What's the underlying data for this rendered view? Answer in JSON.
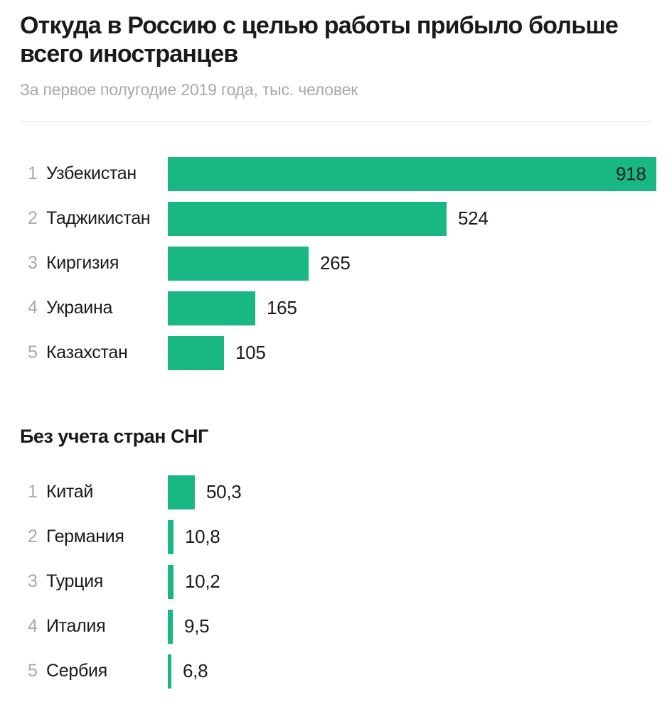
{
  "header": {
    "title": "Откуда в Россию с целью работы прибыло больше всего иностранцев",
    "subtitle": "За первое полугодие 2019 года, тыс. человек"
  },
  "colors": {
    "accent": "#19b784",
    "text": "#1a1a1a",
    "muted": "#a9a9a9",
    "divider": "#e4e4e4",
    "background": "#ffffff"
  },
  "chart_data": [
    {
      "type": "bar",
      "title": "",
      "orientation": "horizontal",
      "ranks": [
        "1",
        "2",
        "3",
        "4",
        "5"
      ],
      "categories": [
        "Узбекистан",
        "Таджикистан",
        "Киргизия",
        "Украина",
        "Казахстан"
      ],
      "values": [
        918,
        524,
        265,
        165,
        105
      ],
      "value_labels": [
        "918",
        "524",
        "265",
        "165",
        "105"
      ],
      "xlim": [
        0,
        918
      ],
      "grid": false,
      "legend": false
    },
    {
      "type": "bar",
      "title": "Без учета стран СНГ",
      "orientation": "horizontal",
      "ranks": [
        "1",
        "2",
        "3",
        "4",
        "5"
      ],
      "categories": [
        "Китай",
        "Германия",
        "Турция",
        "Италия",
        "Сербия"
      ],
      "values": [
        50.3,
        10.8,
        10.2,
        9.5,
        6.8
      ],
      "value_labels": [
        "50,3",
        "10,8",
        "10,2",
        "9,5",
        "6,8"
      ],
      "xlim": [
        0,
        918
      ],
      "grid": false,
      "legend": false
    }
  ]
}
